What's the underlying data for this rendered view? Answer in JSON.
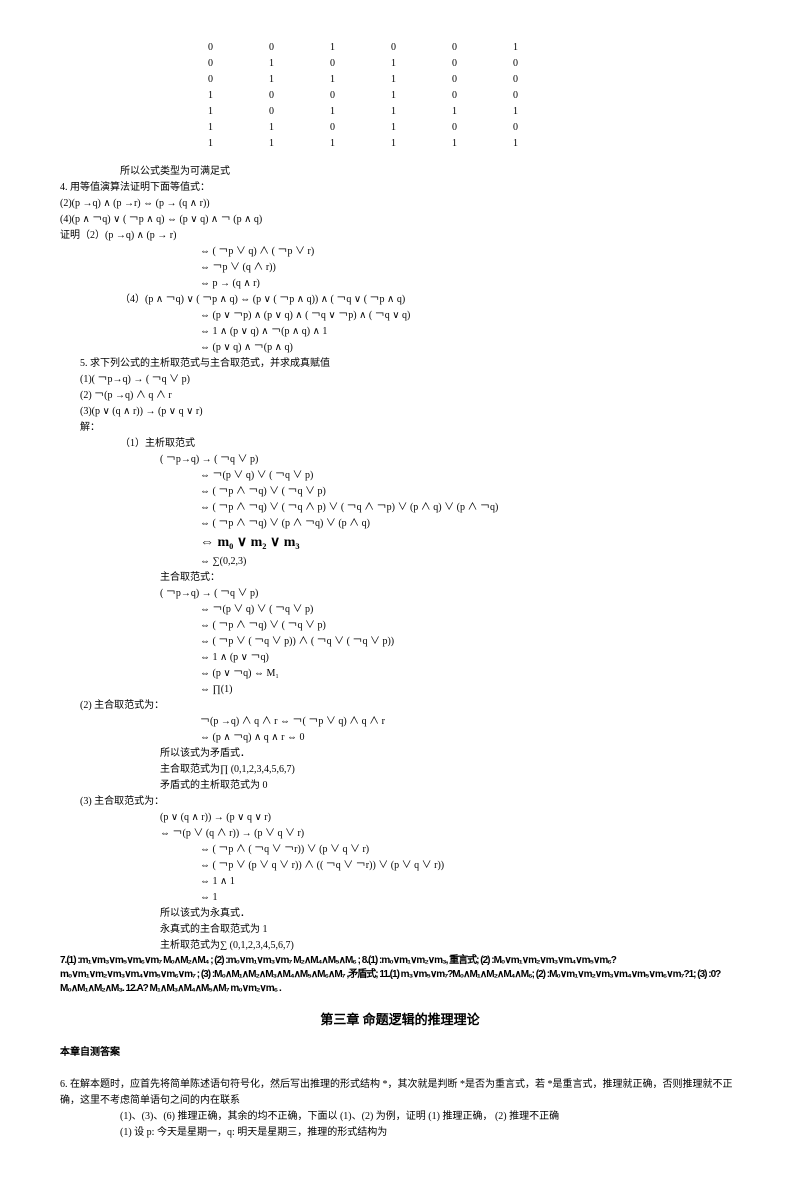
{
  "truth_table": {
    "rows": [
      [
        "0",
        "0",
        "1",
        "0",
        "0",
        "1"
      ],
      [
        "0",
        "1",
        "0",
        "1",
        "0",
        "0"
      ],
      [
        "0",
        "1",
        "1",
        "1",
        "0",
        "0"
      ],
      [
        "1",
        "0",
        "0",
        "1",
        "0",
        "0"
      ],
      [
        "1",
        "0",
        "1",
        "1",
        "1",
        "1"
      ],
      [
        "1",
        "1",
        "0",
        "1",
        "0",
        "0"
      ],
      [
        "1",
        "1",
        "1",
        "1",
        "1",
        "1"
      ]
    ]
  },
  "lines": {
    "l1": "所以公式类型为可满足式",
    "l2": "4. 用等值演算法证明下面等值式：",
    "l3": "(2)(p →q) ∧ (p →r) ⇔ (p → (q ∧ r))",
    "l4": "(4)(p ∧ ￢q) ∨ ( ￢p ∧ q) ⇔ (p ∨ q) ∧ ￢ (p ∧ q)",
    "l5": "证明（2）(p →q) ∧ (p → r)",
    "l6": "⇔ ( ￢p ∨ q) ∧ ( ￢p ∨ r)",
    "l7": "⇔ ￢p ∨ (q ∧ r))",
    "l8": "⇔ p → (q ∧ r)",
    "l9": "（4）(p ∧ ￢q) ∨ ( ￢p ∧ q) ⇔ (p ∨ ( ￢p ∧ q)) ∧ ( ￢q ∨ ( ￢p ∧ q)",
    "l10": "⇔ (p ∨ ￢p) ∧ (p ∨ q) ∧ ( ￢q ∨ ￢p) ∧ ( ￢q ∨ q)",
    "l11": "⇔ 1 ∧ (p ∨ q) ∧ ￢(p ∧ q) ∧ 1",
    "l12": "⇔ (p ∨ q) ∧ ￢(p ∧ q)",
    "l13": "5. 求下列公式的主析取范式与主合取范式，并求成真赋值",
    "l14": "(1)( ￢p→q) → ( ￢q ∨ p)",
    "l15": "(2) ￢(p →q) ∧ q ∧ r",
    "l16": "(3)(p ∨ (q ∧ r)) → (p ∨ q ∨ r)",
    "l17": "解：",
    "l18": "（1）主析取范式",
    "l19": "( ￢p→q) → ( ￢q ∨ p)",
    "l20": "⇔ ￢(p ∨ q) ∨ ( ￢q ∨ p)",
    "l21": "⇔ ( ￢p ∧ ￢q) ∨ ( ￢q ∨ p)",
    "l22": "⇔ ( ￢p ∧ ￢q) ∨ ( ￢q ∧ p) ∨ ( ￢q ∧ ￢p) ∨ (p ∧ q) ∨ (p ∧ ￢q)",
    "l23": "⇔ ( ￢p ∧ ￢q) ∨ (p ∧ ￢q) ∨ (p ∧ q)",
    "l24": "⇔ m₀ ∨ m₂ ∨ m₃",
    "l25": "⇔ ∑(0,2,3)",
    "l26": "主合取范式：",
    "l27": "( ￢p→q) → ( ￢q ∨ p)",
    "l28": "⇔ ￢(p ∨ q) ∨ ( ￢q ∨ p)",
    "l29": "⇔ ( ￢p ∧ ￢q) ∨ ( ￢q ∨ p)",
    "l30": "⇔ ( ￢p ∨ ( ￢q ∨ p)) ∧ ( ￢q ∨ ( ￢q ∨ p))",
    "l31": "⇔ 1 ∧ (p ∨ ￢q)",
    "l32": "⇔ (p ∨ ￢q) ⇔ M₁",
    "l33": "⇔ ∏(1)",
    "l34": "(2)  主合取范式为：",
    "l35": "￢(p →q) ∧ q ∧ r ⇔ ￢( ￢p ∨ q) ∧ q ∧ r",
    "l36": "⇔ (p ∧ ￢q) ∧ q ∧ r ⇔ 0",
    "l37": "所以该式为矛盾式．",
    "l38": "主合取范式为∏ (0,1,2,3,4,5,6,7)",
    "l39": "矛盾式的主析取范式为   0",
    "l40": "(3)  主合取范式为：",
    "l41": "(p ∨ (q ∧ r)) → (p ∨ q ∨ r)",
    "l42": "⇔ ￢(p ∨ (q ∧ r)) → (p ∨ q ∨ r)",
    "l43": "⇔ ( ￢p ∧ ( ￢q ∨ ￢r)) ∨ (p ∨ q ∨ r)",
    "l44": "⇔ ( ￢p ∨ (p ∨ q ∨ r)) ∧ (( ￢q ∨ ￢r)) ∨ (p ∨ q ∨ r))",
    "l45": "⇔ 1 ∧ 1",
    "l46": "⇔ 1",
    "l47": "所以该式为永真式．",
    "l48": "永真式的主合取范式为   1",
    "l49": "主析取范式为∑  (0,1,2,3,4,5,6,7)",
    "l50": "第三章  命题逻辑的推理理论",
    "l51": "本章自测答案",
    "l52": "6. 在解本题时，应首先将简单陈述语句符号化，然后写出推理的形式结构   *，其次就是判断 *是否为重言式，若 *是重言式，推理就正确，否则推理就不正确，这里不考虑简单语句之间的内在联系",
    "l53": "(1)、(3)、(6) 推理正确，其余的均不正确，下面以  (1)、(2) 为例，证明 (1) 推理正确， (2) 推理不正确",
    "l54": "(1) 设 p: 今天是星期一，q: 明天是星期三，推理的形式结构为"
  },
  "formula7": "7.(1)  :m₁∨m₃∨m₅∨m₆∨m₇  M₀∧M₂∧M₄ ; (2) :m₀∨m₁∨m₃∨m₇  M₂∧M₄∧M₅∧M₆ ; 8.(1) :m₀∨m₁∨m₂∨m₃, 重言式; (2)  :M₀∨m₁∨m₂∨m₃∨m₄∨m₅∨m₆?  m₀∨m₁∨m₂∨m₃∨m₄∨m₅∨m₆∨m₇ ; (3)  :M₀∧M₁∧M₂∧M₃∧M₄∧M₅∧M₆∧M₇ ,矛盾式; 11.(1)  m₃∨m₅∨m₇?M₀∧M₁∧M₂∧M₄∧M₆; (2)  :M₀∨m₁∨m₂∨m₃∨m₄∨m₅∨m₆∨m₇?1; (3)  :0?  M₀∧M₁∧M₂∧M₃.  12.A?  M₁∧M₃∧M₄∧M₅∧M₇  m₀∨m₂∨m₆ ."
}
